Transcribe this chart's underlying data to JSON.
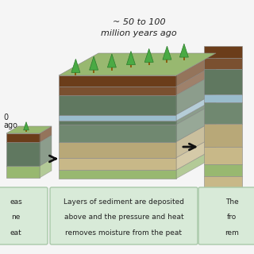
{
  "bg_color": "#f5f5f5",
  "label_text1": "~ 50 to 100",
  "label_text2": "million years ago",
  "caption2": [
    "Layers of sediment are deposited",
    "above and the pressure and heat",
    "removes moisture from the peat"
  ],
  "caption1_lines": [
    "eas",
    "ne",
    "eat"
  ],
  "caption3_lines": [
    "The",
    "fro",
    "rem"
  ],
  "caption_box_color": "#d8ead8",
  "caption_border_color": "#a8c8a8",
  "text_color": "#222222",
  "tree_color": "#4aaa44",
  "tree_dark": "#2a7a2a",
  "trunk_color": "#8B6010",
  "mid_layers": [
    [
      "#6b3d1a",
      0.09
    ],
    [
      "#7a5030",
      0.07
    ],
    [
      "#607860",
      0.16
    ],
    [
      "#9abccc",
      0.05
    ],
    [
      "#607860",
      0.03
    ],
    [
      "#708870",
      0.14
    ],
    [
      "#b8a878",
      0.13
    ],
    [
      "#c8b888",
      0.1
    ],
    [
      "#98b870",
      0.07
    ]
  ],
  "left_layers": [
    [
      "#6b3d1a",
      0.15
    ],
    [
      "#607860",
      0.4
    ],
    [
      "#98b870",
      0.2
    ]
  ],
  "right_layers": [
    [
      "#6b3d1a",
      0.06
    ],
    [
      "#7a5030",
      0.06
    ],
    [
      "#607860",
      0.13
    ],
    [
      "#9abccc",
      0.04
    ],
    [
      "#708870",
      0.11
    ],
    [
      "#b8a878",
      0.12
    ],
    [
      "#c8b888",
      0.09
    ],
    [
      "#98b870",
      0.06
    ],
    [
      "#c8b888",
      0.09
    ],
    [
      "#98b870",
      0.05
    ]
  ]
}
